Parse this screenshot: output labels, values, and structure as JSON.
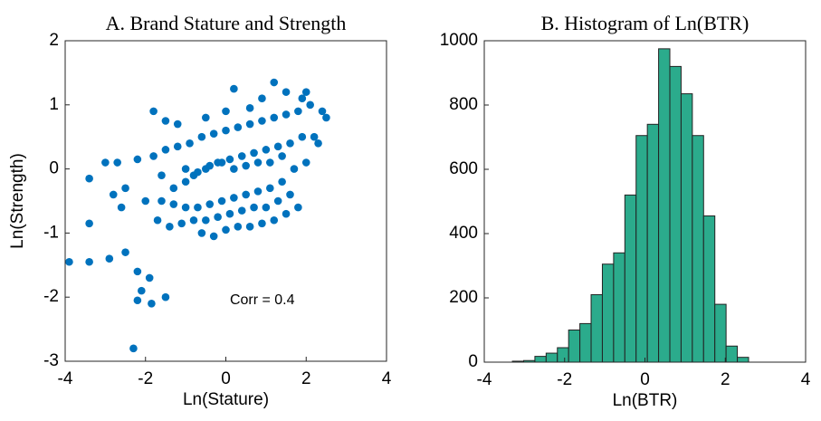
{
  "chart_data": [
    {
      "type": "scatter",
      "title": "A. Brand Stature and Strength",
      "x_label": "Ln(Stature)",
      "y_label": "Ln(Strength)",
      "annotation": "Corr = 0.4",
      "color": "#0072bd",
      "xlim": [
        -4,
        4
      ],
      "ylim": [
        -3,
        2
      ],
      "xticks": [
        -4,
        -2,
        0,
        2,
        4
      ],
      "yticks": [
        -3,
        -2,
        -1,
        0,
        1,
        2
      ],
      "x": [
        -3.9,
        -3.4,
        -2.9,
        -3.4,
        -2.5,
        -2.2,
        -2.1,
        -2.2,
        -1.85,
        -1.9,
        -2.3,
        -1.5,
        -3.4,
        -3.0,
        -2.7,
        -2.5,
        -2.2,
        -1.8,
        -1.5,
        -2.8,
        -2.6,
        -2.0,
        -1.7,
        -1.6,
        -1.3,
        -1.0,
        -0.8,
        -0.5,
        -0.2,
        0.1,
        0.4,
        0.7,
        1.0,
        1.3,
        1.6,
        1.9,
        2.2,
        2.5,
        -1.8,
        -1.5,
        -1.2,
        -0.9,
        -0.6,
        -0.3,
        0.0,
        0.3,
        0.6,
        0.9,
        1.2,
        1.5,
        1.8,
        2.1,
        -1.6,
        -1.3,
        -1.0,
        -0.7,
        -0.4,
        -0.1,
        0.2,
        0.5,
        0.8,
        1.1,
        1.4,
        1.7,
        2.0,
        -1.4,
        -1.1,
        -0.8,
        -0.5,
        -0.2,
        0.1,
        0.4,
        0.7,
        1.0,
        1.3,
        1.6,
        -1.0,
        -0.7,
        -0.4,
        -0.1,
        0.2,
        0.5,
        0.8,
        1.1,
        1.4,
        -0.6,
        -0.3,
        0.0,
        0.3,
        0.6,
        0.9,
        1.2,
        1.5,
        1.8,
        2.3,
        1.9,
        0.2,
        1.2,
        0.9,
        -1.2,
        0.0,
        0.6,
        -0.5,
        1.5,
        2.0,
        2.4
      ],
      "values": [
        -1.45,
        -1.45,
        -1.4,
        -0.85,
        -1.3,
        -1.6,
        -1.9,
        -2.05,
        -2.1,
        -1.7,
        -2.8,
        -2.0,
        -0.15,
        0.1,
        0.1,
        -0.3,
        0.15,
        0.9,
        0.75,
        -0.4,
        -0.6,
        -0.5,
        -0.8,
        -0.1,
        -0.3,
        -0.2,
        -0.1,
        0.0,
        0.1,
        0.15,
        0.2,
        0.25,
        0.3,
        0.35,
        0.4,
        0.5,
        0.5,
        0.8,
        0.2,
        0.3,
        0.35,
        0.4,
        0.5,
        0.55,
        0.6,
        0.65,
        0.7,
        0.75,
        0.8,
        0.85,
        0.9,
        1.0,
        -0.5,
        -0.55,
        -0.6,
        -0.6,
        -0.55,
        -0.5,
        -0.45,
        -0.4,
        -0.35,
        -0.3,
        -0.2,
        0.0,
        0.1,
        -0.9,
        -0.85,
        -0.8,
        -0.8,
        -0.75,
        -0.7,
        -0.65,
        -0.6,
        -0.6,
        -0.5,
        -0.4,
        0.0,
        -0.05,
        0.05,
        0.1,
        0.0,
        0.05,
        0.1,
        0.1,
        0.2,
        -1.0,
        -1.05,
        -0.95,
        -0.9,
        -0.9,
        -0.85,
        -0.8,
        -0.7,
        -0.6,
        0.4,
        1.1,
        1.25,
        1.35,
        1.1,
        0.7,
        0.9,
        0.95,
        0.8,
        1.2,
        1.2,
        0.9
      ]
    },
    {
      "type": "histogram",
      "title": "B. Histogram of Ln(BTR)",
      "x_label": "Ln(BTR)",
      "color": "#2bab8c",
      "xlim": [
        -4,
        4
      ],
      "ylim": [
        0,
        1000
      ],
      "xticks": [
        -4,
        -2,
        0,
        2,
        4
      ],
      "yticks": [
        0,
        200,
        400,
        600,
        800,
        1000
      ],
      "bins": [
        -3.3,
        -3.02,
        -2.74,
        -2.46,
        -2.18,
        -1.9,
        -1.62,
        -1.34,
        -1.06,
        -0.78,
        -0.5,
        -0.22,
        0.06,
        0.34,
        0.62,
        0.9,
        1.18,
        1.46,
        1.74,
        2.02,
        2.3,
        2.58
      ],
      "values": [
        3,
        5,
        18,
        28,
        45,
        100,
        120,
        210,
        305,
        340,
        520,
        705,
        740,
        975,
        920,
        835,
        705,
        455,
        180,
        50,
        15
      ]
    }
  ]
}
